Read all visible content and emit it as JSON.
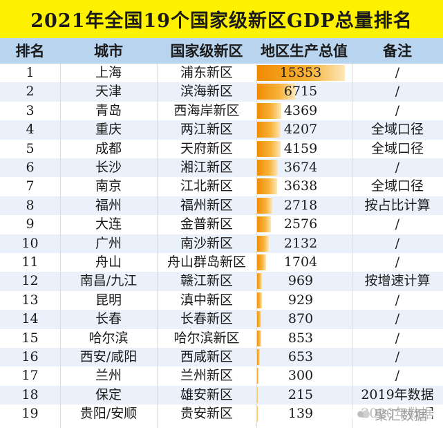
{
  "title": "2021年全国19个国家级新区GDP总量排名",
  "headers": {
    "rank": "排名",
    "city": "城市",
    "district": "国家级新区",
    "gdp": "地区生产总值",
    "note": "备注"
  },
  "chart_data": {
    "type": "table",
    "title": "2021年全国19个国家级新区GDP总量排名",
    "columns": [
      "排名",
      "城市",
      "国家级新区",
      "地区生产总值",
      "备注"
    ],
    "bar_max": 15353,
    "rows": [
      {
        "rank": "1",
        "city": "上海",
        "district": "浦东新区",
        "gdp": 15353,
        "note": "/"
      },
      {
        "rank": "2",
        "city": "天津",
        "district": "滨海新区",
        "gdp": 6715,
        "note": "/"
      },
      {
        "rank": "3",
        "city": "青岛",
        "district": "西海岸新区",
        "gdp": 4369,
        "note": "/"
      },
      {
        "rank": "4",
        "city": "重庆",
        "district": "两江新区",
        "gdp": 4207,
        "note": "全域口径"
      },
      {
        "rank": "5",
        "city": "成都",
        "district": "天府新区",
        "gdp": 4159,
        "note": "全域口径"
      },
      {
        "rank": "6",
        "city": "长沙",
        "district": "湘江新区",
        "gdp": 3674,
        "note": "/"
      },
      {
        "rank": "7",
        "city": "南京",
        "district": "江北新区",
        "gdp": 3638,
        "note": "全域口径"
      },
      {
        "rank": "8",
        "city": "福州",
        "district": "福州新区",
        "gdp": 2718,
        "note": "按占比计算"
      },
      {
        "rank": "9",
        "city": "大连",
        "district": "金普新区",
        "gdp": 2576,
        "note": "/"
      },
      {
        "rank": "10",
        "city": "广州",
        "district": "南沙新区",
        "gdp": 2132,
        "note": "/"
      },
      {
        "rank": "11",
        "city": "舟山",
        "district": "舟山群岛新区",
        "gdp": 1704,
        "note": "/"
      },
      {
        "rank": "12",
        "city": "南昌/九江",
        "district": "赣江新区",
        "gdp": 969,
        "note": "按增速计算"
      },
      {
        "rank": "13",
        "city": "昆明",
        "district": "滇中新区",
        "gdp": 929,
        "note": "/"
      },
      {
        "rank": "14",
        "city": "长春",
        "district": "长春新区",
        "gdp": 870,
        "note": "/"
      },
      {
        "rank": "15",
        "city": "哈尔滨",
        "district": "哈尔滨新区",
        "gdp": 853,
        "note": "/"
      },
      {
        "rank": "16",
        "city": "西安/咸阳",
        "district": "西咸新区",
        "gdp": 653,
        "note": "/"
      },
      {
        "rank": "17",
        "city": "兰州",
        "district": "兰州新区",
        "gdp": 300,
        "note": "/"
      },
      {
        "rank": "18",
        "city": "保定",
        "district": "雄安新区",
        "gdp": 215,
        "note": "2019年数据"
      },
      {
        "rank": "19",
        "city": "贵阳/安顺",
        "district": "贵安新区",
        "gdp": 139,
        "note": "2020年数据"
      }
    ]
  },
  "watermark": {
    "text": "聚汇数据",
    "icon": "cloud-logo-icon"
  }
}
